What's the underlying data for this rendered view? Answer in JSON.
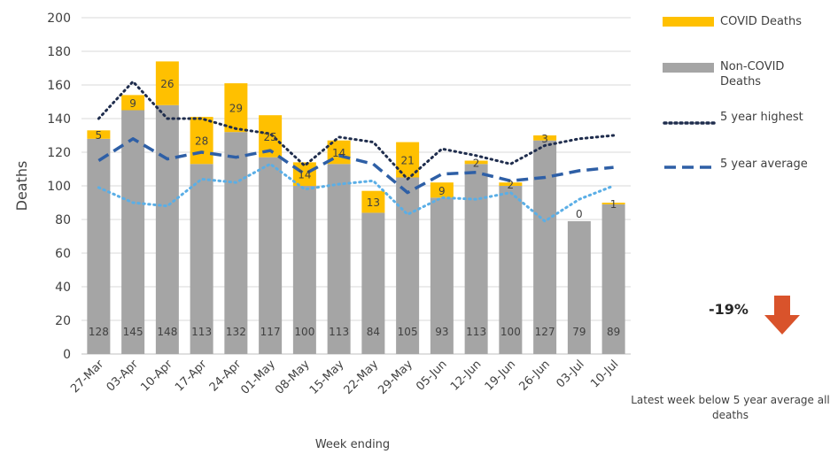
{
  "chart_data": {
    "type": "bar",
    "stacked": true,
    "xlabel": "Week ending",
    "ylabel": "Deaths",
    "ylim": [
      0,
      200
    ],
    "yticks": [
      0,
      20,
      40,
      60,
      80,
      100,
      120,
      140,
      160,
      180,
      200
    ],
    "grid": true,
    "legend_position": "right",
    "categories": [
      "27-Mar",
      "03-Apr",
      "10-Apr",
      "17-Apr",
      "24-Apr",
      "01-May",
      "08-May",
      "15-May",
      "22-May",
      "29-May",
      "05-Jun",
      "12-Jun",
      "19-Jun",
      "26-Jun",
      "03-Jul",
      "10-Jul"
    ],
    "series": [
      {
        "name": "Non-COVID Deaths",
        "kind": "bar",
        "color": "#a5a5a5",
        "values": [
          128,
          145,
          148,
          113,
          132,
          117,
          100,
          113,
          84,
          105,
          93,
          113,
          100,
          127,
          79,
          89
        ]
      },
      {
        "name": "COVID Deaths",
        "kind": "bar",
        "color": "#ffc000",
        "values": [
          5,
          9,
          26,
          28,
          29,
          25,
          14,
          14,
          13,
          21,
          9,
          2,
          2,
          3,
          0,
          1
        ]
      },
      {
        "name": "5 year highest",
        "kind": "line",
        "style": "dotted",
        "color": "#1f2d4d",
        "values": [
          140,
          162,
          140,
          140,
          134,
          131,
          112,
          129,
          126,
          104,
          122,
          118,
          113,
          124,
          128,
          130
        ]
      },
      {
        "name": "5 year average",
        "kind": "line",
        "style": "dashed",
        "color": "#2e5fa6",
        "values": [
          115,
          128,
          116,
          120,
          117,
          121,
          107,
          118,
          113,
          96,
          107,
          108,
          103,
          105,
          109,
          111
        ]
      },
      {
        "kind": "line",
        "style": "dotted",
        "color": "#5aaee6",
        "values": [
          99,
          90,
          88,
          104,
          102,
          113,
          98,
          101,
          103,
          83,
          93,
          92,
          96,
          79,
          92,
          100
        ]
      }
    ]
  },
  "summary": {
    "change_value": "-19%",
    "footnote": "Latest week below 5 year average all deaths",
    "arrow_color": "#d9532b"
  }
}
